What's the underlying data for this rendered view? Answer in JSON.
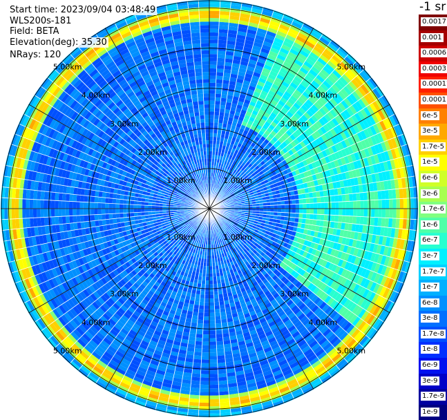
{
  "header": {
    "start_time": "Start time: 2023/09/04 03:48:49",
    "instrument": "WLS200s-181",
    "field": "Field: BETA",
    "elevation": "Elevation(deg): 35.30",
    "nrays": "NRays: 120"
  },
  "colorbar": {
    "unit": "-1 sr",
    "levels": [
      {
        "label": "0.0017",
        "color": "#7f0000"
      },
      {
        "label": "0.001",
        "color": "#a50000"
      },
      {
        "label": "0.0006",
        "color": "#cc0000"
      },
      {
        "label": "0.0003",
        "color": "#f00000"
      },
      {
        "label": "0.00017",
        "color": "#ff2000"
      },
      {
        "label": "0.0001",
        "color": "#ff5000"
      },
      {
        "label": "6e-5",
        "color": "#ff8000"
      },
      {
        "label": "3e-5",
        "color": "#ffa800"
      },
      {
        "label": "1.7e-5",
        "color": "#ffd000"
      },
      {
        "label": "1e-5",
        "color": "#ffff00"
      },
      {
        "label": "6e-6",
        "color": "#d0ff28"
      },
      {
        "label": "3e-6",
        "color": "#a8ff50"
      },
      {
        "label": "1.7e-6",
        "color": "#80ff80"
      },
      {
        "label": "1e-6",
        "color": "#50ffa8"
      },
      {
        "label": "6e-7",
        "color": "#28ffd0"
      },
      {
        "label": "3e-7",
        "color": "#00f0ff"
      },
      {
        "label": "1.7e-7",
        "color": "#00d0ff"
      },
      {
        "label": "1e-7",
        "color": "#00b0ff"
      },
      {
        "label": "6e-8",
        "color": "#0090ff"
      },
      {
        "label": "3e-8",
        "color": "#0070ff"
      },
      {
        "label": "1.7e-8",
        "color": "#0050ff"
      },
      {
        "label": "1e-8",
        "color": "#0030ff"
      },
      {
        "label": "6e-9",
        "color": "#0010f0"
      },
      {
        "label": "3e-9",
        "color": "#0000c8"
      },
      {
        "label": "1.7e-9",
        "color": "#0000a0"
      },
      {
        "label": "1e-9",
        "color": "#000080"
      }
    ]
  },
  "chart_data": {
    "type": "heatmap",
    "projection": "polar (PPI)",
    "field": "BETA",
    "elevation_deg": 35.3,
    "nrays": 120,
    "max_range_km": 5.2,
    "range_rings": [
      {
        "range_km": 1,
        "label": "1.00km"
      },
      {
        "range_km": 2,
        "label": "2.00km"
      },
      {
        "range_km": 3,
        "label": "3.00km"
      },
      {
        "range_km": 4,
        "label": "4.00km"
      },
      {
        "range_km": 5,
        "label": "5.00km"
      }
    ],
    "spoke_azimuth_step_deg": 30,
    "features": [
      {
        "range_km": [
          0.0,
          4.6
        ],
        "level": "3e-8",
        "description": "background mostly blue"
      },
      {
        "range_km": [
          2.2,
          4.8
        ],
        "azimuth_deg": [
          20,
          130
        ],
        "level": "6e-7"
      },
      {
        "range_km": [
          4.7,
          5.0
        ],
        "level": "3e-5",
        "description": "high-value ring (yellow/orange/red)"
      }
    ]
  }
}
